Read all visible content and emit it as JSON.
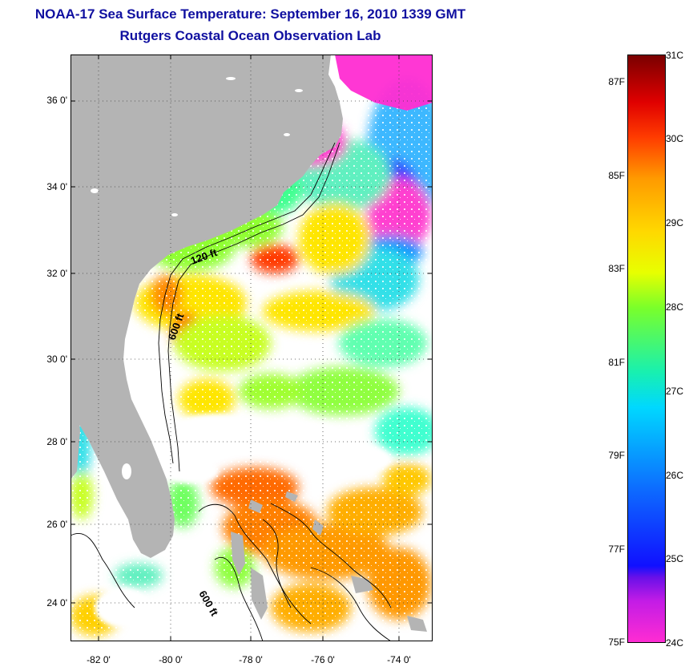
{
  "header": {
    "title": "NOAA-17 Sea Surface Temperature:  September 16, 2010 1339 GMT",
    "subtitle": "Rutgers Coastal Ocean Observation Lab"
  },
  "map": {
    "lat_ticks": [
      "36 0'",
      "34 0'",
      "32 0'",
      "30 0'",
      "28 0'",
      "26 0'",
      "24 0'"
    ],
    "lon_ticks": [
      "-82 0'",
      "-80 0'",
      "-78 0'",
      "-76 0'",
      "-74 0'"
    ],
    "lat_range": [
      23.0,
      37.0
    ],
    "lon_range": [
      -83.0,
      -73.0
    ],
    "contour_labels": [
      "120 ft",
      "600 ft",
      "600 ft"
    ],
    "colors": {
      "land": "#b4b4b4",
      "no_data": "#ffffff"
    }
  },
  "colorbar": {
    "fahrenheit": [
      "87F",
      "85F",
      "83F",
      "81F",
      "79F",
      "77F",
      "75F"
    ],
    "celsius": [
      "31C",
      "30C",
      "29C",
      "28C",
      "27C",
      "26C",
      "25C",
      "24C"
    ],
    "range_c": [
      24,
      31
    ]
  }
}
